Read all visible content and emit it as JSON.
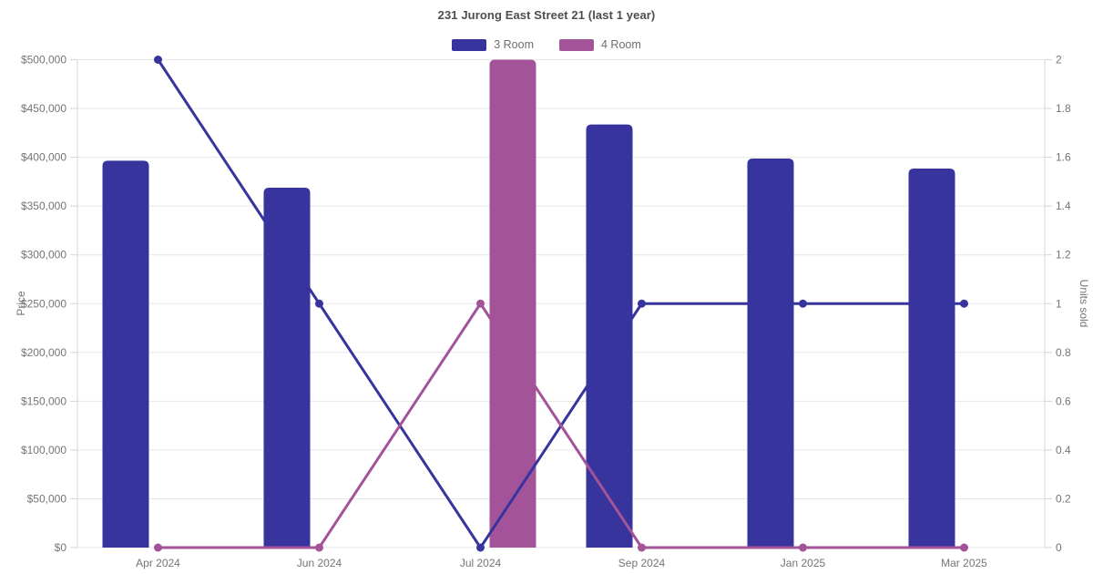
{
  "chart_data": {
    "type": "bar",
    "subtype": "combo-bar-line-dual-axis",
    "title": "231 Jurong East Street 21 (last 1 year)",
    "categories": [
      "Apr 2024",
      "Jun 2024",
      "Jul 2024",
      "Sep 2024",
      "Jan 2025",
      "Mar 2025"
    ],
    "legend": [
      {
        "label": "3 Room",
        "color": "#37349e"
      },
      {
        "label": "4 Room",
        "color": "#a35499"
      }
    ],
    "y_left": {
      "label": "Price",
      "min": 0,
      "max": 500000,
      "tick_step": 50000,
      "tick_labels": [
        "$0",
        "$50,000",
        "$100,000",
        "$150,000",
        "$200,000",
        "$250,000",
        "$300,000",
        "$350,000",
        "$400,000",
        "$450,000",
        "$500,000"
      ]
    },
    "y_right": {
      "label": "Units sold",
      "min": 0,
      "max": 2,
      "tick_step": 0.2,
      "tick_labels": [
        "0",
        "0.2",
        "0.4",
        "0.6",
        "0.8",
        "1",
        "1.2",
        "1.4",
        "1.6",
        "1.8",
        "2"
      ]
    },
    "series": [
      {
        "name": "3 Room",
        "type": "bar",
        "axis": "left",
        "color": "#37349e",
        "values": [
          396500,
          368800,
          null,
          433600,
          398700,
          388400
        ]
      },
      {
        "name": "4 Room",
        "type": "bar",
        "axis": "left",
        "color": "#a35499",
        "values": [
          null,
          null,
          500000,
          null,
          null,
          null
        ]
      },
      {
        "name": "3 Room",
        "type": "line",
        "axis": "right",
        "color": "#37349e",
        "values": [
          2,
          1,
          0,
          1,
          1,
          1
        ]
      },
      {
        "name": "4 Room",
        "type": "line",
        "axis": "right",
        "color": "#a35499",
        "values": [
          0,
          0,
          1,
          0,
          0,
          0
        ]
      }
    ],
    "grid": true,
    "legend_position": "top",
    "colors": {
      "grid_line": "#e7e7e7",
      "axis_line": "#d6d6d6",
      "tick_text": "#757575",
      "title_text": "#4d4d4d",
      "legend_text": "#6e6e6e"
    }
  }
}
